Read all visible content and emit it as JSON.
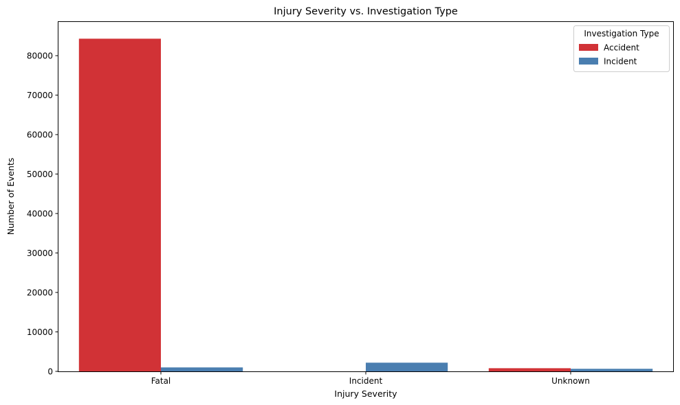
{
  "chart_data": {
    "type": "bar",
    "title": "Injury Severity vs. Investigation Type",
    "xlabel": "Injury Severity",
    "ylabel": "Number of Events",
    "categories": [
      "Fatal",
      "Incident",
      "Unknown"
    ],
    "series": [
      {
        "name": "Accident",
        "color": "#d13236",
        "values": [
          84300,
          0,
          800
        ]
      },
      {
        "name": "Incident",
        "color": "#4a7eb0",
        "values": [
          1000,
          2200,
          650
        ]
      }
    ],
    "ylim": [
      0,
      88540
    ],
    "yticks": [
      0,
      10000,
      20000,
      30000,
      40000,
      50000,
      60000,
      70000,
      80000
    ],
    "grid": false,
    "legend": {
      "title": "Investigation Type",
      "position": "top-right"
    }
  }
}
